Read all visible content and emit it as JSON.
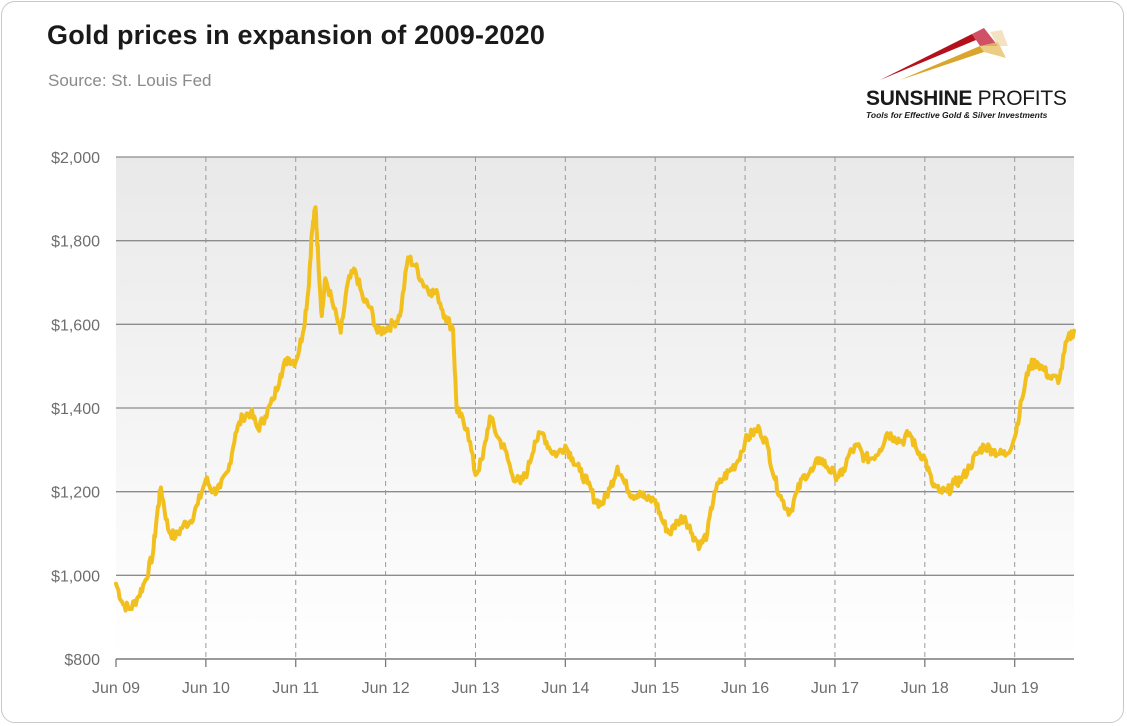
{
  "header": {
    "title": "Gold prices in expansion of 2009-2020",
    "subtitle": "Source: St. Louis Fed"
  },
  "logo": {
    "word_bold": "SUNSHINE",
    "word_light": " PROFITS",
    "tagline": "Tools for Effective Gold & Silver Investments"
  },
  "chart_data": {
    "type": "line",
    "title": "Gold prices in expansion of 2009-2020",
    "xlabel": "",
    "ylabel": "",
    "ylim": [
      800,
      2000
    ],
    "xlim": [
      2009.46,
      2020.12
    ],
    "y_ticks": [
      800,
      1000,
      1200,
      1400,
      1600,
      1800,
      2000
    ],
    "y_tick_labels": [
      "$800",
      "$1,000",
      "$1,200",
      "$1,400",
      "$1,600",
      "$1,800",
      "$2,000"
    ],
    "x_ticks": [
      2009.46,
      2010.46,
      2011.46,
      2012.46,
      2013.46,
      2014.46,
      2015.46,
      2016.46,
      2017.46,
      2018.46,
      2019.46
    ],
    "x_tick_labels": [
      "Jun 09",
      "Jun 10",
      "Jun 11",
      "Jun 12",
      "Jun 13",
      "Jun 14",
      "Jun 15",
      "Jun 16",
      "Jun 17",
      "Jun 18",
      "Jun 19"
    ],
    "grid": {
      "horizontal": true,
      "vertical": true
    },
    "line_color": "#f2c01e",
    "series": [
      {
        "x": [
          2009.46,
          2009.54,
          2009.62,
          2009.71,
          2009.79,
          2009.87,
          2009.92,
          2009.96,
          2010.04,
          2010.12,
          2010.21,
          2010.29,
          2010.37,
          2010.46,
          2010.54,
          2010.62,
          2010.71,
          2010.79,
          2010.87,
          2010.96,
          2011.04,
          2011.12,
          2011.21,
          2011.29,
          2011.37,
          2011.46,
          2011.54,
          2011.6,
          2011.64,
          2011.68,
          2011.71,
          2011.75,
          2011.79,
          2011.87,
          2011.96,
          2012.04,
          2012.12,
          2012.21,
          2012.29,
          2012.37,
          2012.46,
          2012.54,
          2012.62,
          2012.71,
          2012.79,
          2012.87,
          2012.96,
          2013.04,
          2013.12,
          2013.21,
          2013.25,
          2013.29,
          2013.37,
          2013.46,
          2013.54,
          2013.62,
          2013.71,
          2013.79,
          2013.87,
          2013.96,
          2014.04,
          2014.12,
          2014.21,
          2014.29,
          2014.37,
          2014.46,
          2014.54,
          2014.62,
          2014.71,
          2014.79,
          2014.87,
          2014.96,
          2015.04,
          2015.12,
          2015.21,
          2015.29,
          2015.37,
          2015.46,
          2015.54,
          2015.62,
          2015.71,
          2015.79,
          2015.87,
          2015.96,
          2016.04,
          2016.12,
          2016.21,
          2016.29,
          2016.37,
          2016.46,
          2016.54,
          2016.62,
          2016.71,
          2016.79,
          2016.87,
          2016.96,
          2017.04,
          2017.12,
          2017.21,
          2017.29,
          2017.37,
          2017.46,
          2017.54,
          2017.62,
          2017.71,
          2017.79,
          2017.87,
          2017.96,
          2018.04,
          2018.12,
          2018.21,
          2018.29,
          2018.37,
          2018.46,
          2018.54,
          2018.62,
          2018.71,
          2018.79,
          2018.87,
          2018.96,
          2019.04,
          2019.12,
          2019.21,
          2019.29,
          2019.37,
          2019.46,
          2019.54,
          2019.62,
          2019.71,
          2019.79,
          2019.87,
          2019.96,
          2020.04,
          2020.12
        ],
        "values": [
          980,
          930,
          920,
          950,
          990,
          1050,
          1150,
          1210,
          1110,
          1090,
          1120,
          1130,
          1170,
          1230,
          1200,
          1210,
          1250,
          1340,
          1380,
          1390,
          1350,
          1380,
          1420,
          1480,
          1520,
          1510,
          1580,
          1680,
          1820,
          1880,
          1760,
          1620,
          1710,
          1650,
          1580,
          1700,
          1730,
          1660,
          1640,
          1580,
          1590,
          1600,
          1620,
          1760,
          1740,
          1700,
          1680,
          1670,
          1620,
          1590,
          1400,
          1380,
          1350,
          1240,
          1280,
          1380,
          1330,
          1300,
          1240,
          1220,
          1250,
          1320,
          1340,
          1300,
          1290,
          1310,
          1280,
          1250,
          1220,
          1180,
          1170,
          1210,
          1260,
          1220,
          1190,
          1200,
          1180,
          1180,
          1130,
          1100,
          1130,
          1140,
          1100,
          1070,
          1100,
          1200,
          1230,
          1250,
          1270,
          1320,
          1340,
          1350,
          1310,
          1230,
          1180,
          1150,
          1200,
          1240,
          1250,
          1280,
          1260,
          1240,
          1240,
          1290,
          1310,
          1280,
          1280,
          1300,
          1340,
          1330,
          1320,
          1340,
          1300,
          1280,
          1220,
          1200,
          1200,
          1220,
          1230,
          1260,
          1290,
          1310,
          1300,
          1290,
          1290,
          1330,
          1420,
          1500,
          1510,
          1490,
          1470,
          1470,
          1560,
          1585
        ]
      }
    ]
  }
}
